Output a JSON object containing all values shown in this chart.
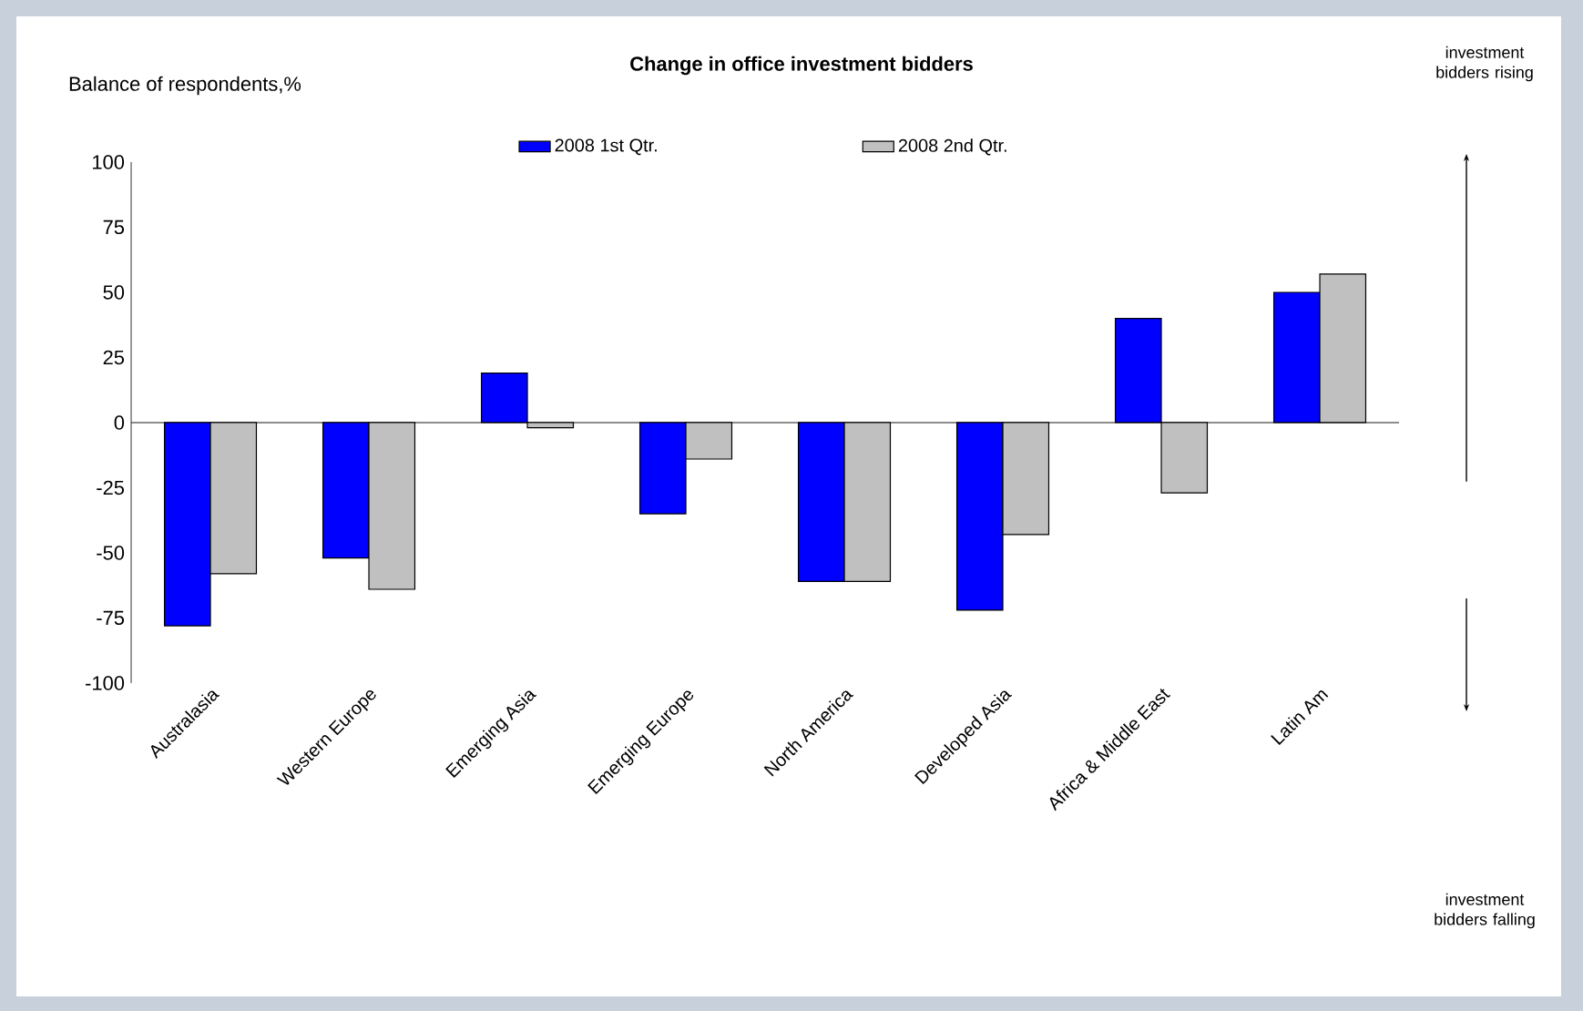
{
  "chart_data": {
    "type": "bar",
    "title": "Change in office investment bidders",
    "ylabel": "Balance of respondents,%",
    "categories": [
      "Australasia",
      "Western Europe",
      "Emerging Asia",
      "Emerging Europe",
      "North America",
      "Developed Asia",
      "Africa & Middle East",
      "Latin Am"
    ],
    "series": [
      {
        "name": "2008 1st Qtr.",
        "color": "#0000ff",
        "values": [
          -78,
          -52,
          19,
          -35,
          -61,
          -72,
          40,
          50
        ]
      },
      {
        "name": "2008 2nd Qtr.",
        "color": "#c0c0c0",
        "values": [
          -58,
          -64,
          -2,
          -14,
          -61,
          -43,
          -27,
          57
        ]
      }
    ],
    "ylim": [
      -100,
      100
    ],
    "yticks": [
      -100,
      -75,
      -50,
      -25,
      0,
      25,
      50,
      75,
      100
    ],
    "legend": "top",
    "annotations": [
      "investment bidders rising",
      "investment bidders falling"
    ]
  }
}
